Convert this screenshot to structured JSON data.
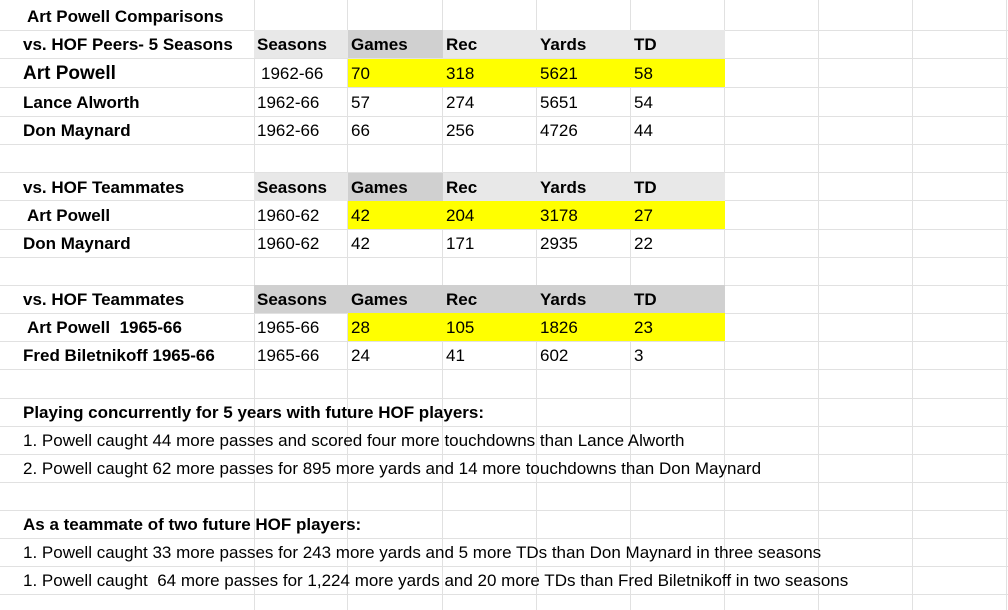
{
  "title": "Art Powell Comparisons",
  "sections": {
    "peers": {
      "label": "vs. HOF Peers- 5 Seasons",
      "headers": [
        "Seasons",
        "Games",
        "Rec",
        "Yards",
        "TD"
      ],
      "rows": [
        {
          "name": "Art Powell",
          "seasons": "1962-66",
          "games": "70",
          "rec": "318",
          "yards": "5621",
          "td": "58"
        },
        {
          "name": "Lance Alworth",
          "seasons": "1962-66",
          "games": "57",
          "rec": "274",
          "yards": "5651",
          "td": "54"
        },
        {
          "name": "Don Maynard",
          "seasons": "1962-66",
          "games": "66",
          "rec": "256",
          "yards": "4726",
          "td": "44"
        }
      ]
    },
    "teammates1": {
      "label": "vs. HOF Teammates",
      "headers": [
        "Seasons",
        "Games",
        "Rec",
        "Yards",
        "TD"
      ],
      "rows": [
        {
          "name": "Art Powell",
          "seasons": "1960-62",
          "games": "42",
          "rec": "204",
          "yards": "3178",
          "td": "27"
        },
        {
          "name": "Don Maynard",
          "seasons": "1960-62",
          "games": "42",
          "rec": "171",
          "yards": "2935",
          "td": "22"
        }
      ]
    },
    "teammates2": {
      "label": "vs. HOF Teammates",
      "headers": [
        "Seasons",
        "Games",
        "Rec",
        "Yards",
        "TD"
      ],
      "rows": [
        {
          "name": "Art Powell  1965-66",
          "seasons": "1965-66",
          "games": "28",
          "rec": "105",
          "yards": "1826",
          "td": "23"
        },
        {
          "name": "Fred Biletnikoff 1965-66",
          "seasons": "1965-66",
          "games": "24",
          "rec": "41",
          "yards": "602",
          "td": "3"
        }
      ]
    }
  },
  "notes": {
    "concurrent_heading": "Playing concurrently for 5 years with future HOF players:",
    "concurrent_1": "1. Powell caught 44 more passes and scored four more touchdowns than Lance Alworth",
    "concurrent_2": "2. Powell caught 62 more passes for 895 more yards and 14 more touchdowns than Don Maynard",
    "teammate_heading": "As a teammate of two future HOF players:",
    "teammate_1": "1. Powell caught 33 more passes for 243 more yards and 5 more TDs than Don Maynard in three seasons",
    "teammate_2": "1. Powell caught  64 more passes for 1,224 more yards and 20 more TDs than Fred Biletnikoff in two seasons"
  },
  "colors": {
    "highlight": "#ffff00",
    "header_light": "#e8e8e8",
    "header_dark": "#d0d0d0",
    "gridline": "#e1e1e1"
  }
}
